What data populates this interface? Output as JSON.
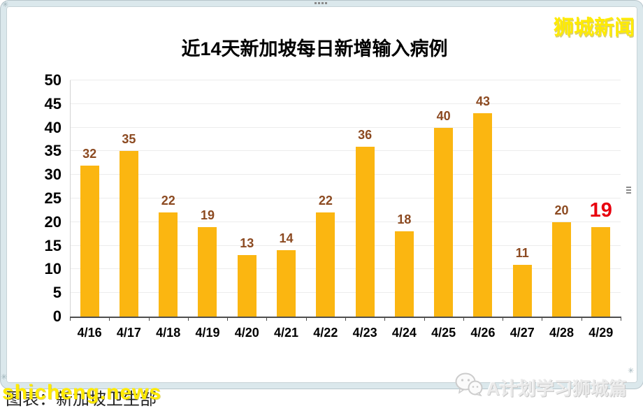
{
  "page": {
    "watermark_top_right": "狮城新闻",
    "watermark_bottom_left": "shicheng.news",
    "caption_bottom_left": "图表：新加坡卫生部",
    "brand_bottom_right": "A计划学习狮城篇"
  },
  "colors": {
    "bar": "#FBB611",
    "value_label": "#8C4A21",
    "highlight_label": "#E8000E",
    "watermark_yellow": "#FFEB00",
    "grid": "#ECECEC",
    "axis": "#4D4D4D",
    "frame": "#DBE8EC"
  },
  "chart_data": {
    "type": "bar",
    "title": "近14天新加坡每日新增输入病例",
    "categories": [
      "4/16",
      "4/17",
      "4/18",
      "4/19",
      "4/20",
      "4/21",
      "4/22",
      "4/23",
      "4/24",
      "4/25",
      "4/26",
      "4/27",
      "4/28",
      "4/29"
    ],
    "values": [
      32,
      35,
      22,
      19,
      13,
      14,
      22,
      36,
      18,
      40,
      43,
      11,
      20,
      19
    ],
    "highlight_index": 13,
    "highlight_note": "latest value shown in red",
    "xlabel": "",
    "ylabel": "",
    "ylim": [
      0,
      50
    ],
    "y_ticks": [
      0,
      5,
      10,
      15,
      20,
      25,
      30,
      35,
      40,
      45,
      50
    ],
    "grid": true,
    "legend": "none",
    "bar_color": "#FBB611"
  }
}
